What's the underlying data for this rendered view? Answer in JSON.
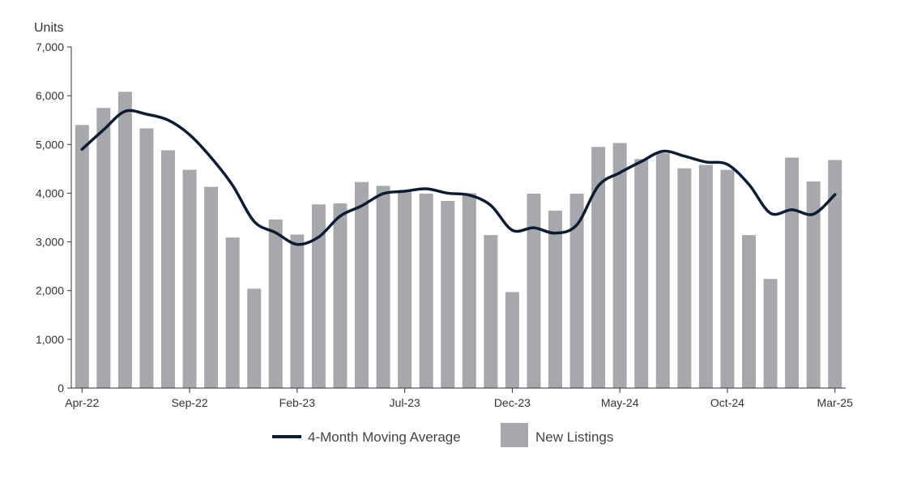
{
  "chart_data": {
    "type": "bar",
    "ylabel": "Units",
    "ylim": [
      0,
      7000
    ],
    "yticks": [
      0,
      1000,
      2000,
      3000,
      4000,
      5000,
      6000,
      7000
    ],
    "ytick_labels": [
      "0",
      "1,000",
      "2,000",
      "3,000",
      "4,000",
      "5,000",
      "6,000",
      "7,000"
    ],
    "categories": [
      "Apr-22",
      "May-22",
      "Jun-22",
      "Jul-22",
      "Aug-22",
      "Sep-22",
      "Oct-22",
      "Nov-22",
      "Dec-22",
      "Jan-23",
      "Feb-23",
      "Mar-23",
      "Apr-23",
      "May-23",
      "Jun-23",
      "Jul-23",
      "Aug-23",
      "Sep-23",
      "Oct-23",
      "Nov-23",
      "Dec-23",
      "Jan-24",
      "Feb-24",
      "Mar-24",
      "Apr-24",
      "May-24",
      "Jun-24",
      "Jul-24",
      "Aug-24",
      "Sep-24",
      "Oct-24",
      "Nov-24",
      "Dec-24",
      "Jan-25",
      "Feb-25",
      "Mar-25"
    ],
    "xtick_labels": [
      "Apr-22",
      "Sep-22",
      "Feb-23",
      "Jul-23",
      "Dec-23",
      "May-24",
      "Oct-24",
      "Mar-25"
    ],
    "series": [
      {
        "name": "New Listings",
        "kind": "bar",
        "color": "#a7a8ab",
        "values": [
          5400,
          5750,
          6080,
          5330,
          4880,
          4480,
          4130,
          3090,
          2040,
          3460,
          3150,
          3770,
          3790,
          4230,
          4150,
          4030,
          3990,
          3840,
          4000,
          3140,
          1970,
          3990,
          3640,
          3990,
          4950,
          5030,
          4700,
          4820,
          4510,
          4580,
          4480,
          3140,
          2240,
          4730,
          4240,
          4680
        ]
      },
      {
        "name": "4-Month Moving Average",
        "kind": "line",
        "color": "#0d1b33",
        "values": [
          4900,
          5300,
          5680,
          5620,
          5500,
          5200,
          4730,
          4160,
          3420,
          3190,
          2950,
          3100,
          3530,
          3740,
          3990,
          4040,
          4090,
          4000,
          3960,
          3750,
          3240,
          3290,
          3180,
          3350,
          4150,
          4420,
          4650,
          4860,
          4760,
          4640,
          4590,
          4180,
          3590,
          3660,
          3570,
          3970
        ]
      }
    ],
    "grid": false,
    "legend_position": "bottom"
  },
  "legend": {
    "line_label": "4-Month Moving Average",
    "bar_label": "New Listings"
  }
}
